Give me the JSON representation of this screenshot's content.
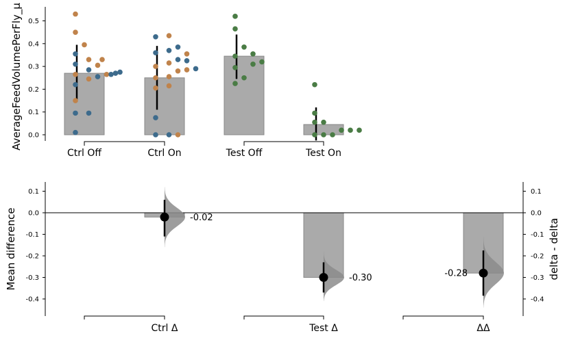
{
  "chart_data": [
    {
      "type": "bar",
      "panel": "top",
      "ylabel": "AverageFeedVolumePerFly_µ",
      "ylim": [
        -0.03,
        0.56
      ],
      "yticks": [
        "0.0",
        "0.1",
        "0.2",
        "0.3",
        "0.4",
        "0.5"
      ],
      "categories": [
        "Ctrl Off",
        "Ctrl On",
        "Test Off",
        "Test On"
      ],
      "bar_means": [
        0.27,
        0.25,
        0.345,
        0.045
      ],
      "error_bars": [
        [
          0.145,
          0.395
        ],
        [
          0.11,
          0.39
        ],
        [
          0.245,
          0.44
        ],
        [
          -0.025,
          0.12
        ]
      ],
      "bar_color": "#aaaaaa",
      "group_brackets": [
        [
          "Ctrl Off",
          "Ctrl On"
        ],
        [
          "Test Off",
          "Test On"
        ]
      ],
      "points": {
        "colors": {
          "a": "#3d6b8c",
          "b": "#c0834b",
          "c": "#4a7c45"
        },
        "Ctrl Off": [
          {
            "y": 0.53,
            "c": "b",
            "o": -2
          },
          {
            "y": 0.45,
            "c": "b",
            "o": -2
          },
          {
            "y": 0.395,
            "c": "b",
            "o": 0
          },
          {
            "y": 0.355,
            "c": "a",
            "o": -2
          },
          {
            "y": 0.33,
            "c": "b",
            "o": 1
          },
          {
            "y": 0.33,
            "c": "b",
            "o": 4
          },
          {
            "y": 0.31,
            "c": "a",
            "o": -2
          },
          {
            "y": 0.305,
            "c": "b",
            "o": 3
          },
          {
            "y": 0.285,
            "c": "a",
            "o": 1
          },
          {
            "y": 0.275,
            "c": "a",
            "o": 8
          },
          {
            "y": 0.27,
            "c": "a",
            "o": 7
          },
          {
            "y": 0.265,
            "c": "b",
            "o": -2
          },
          {
            "y": 0.265,
            "c": "b",
            "o": 5
          },
          {
            "y": 0.265,
            "c": "a",
            "o": 6
          },
          {
            "y": 0.255,
            "c": "a",
            "o": 3
          },
          {
            "y": 0.245,
            "c": "b",
            "o": 1
          },
          {
            "y": 0.22,
            "c": "a",
            "o": -2
          },
          {
            "y": 0.15,
            "c": "b",
            "o": -2
          },
          {
            "y": 0.095,
            "c": "a",
            "o": -2
          },
          {
            "y": 0.095,
            "c": "a",
            "o": 1
          },
          {
            "y": 0.01,
            "c": "a",
            "o": -2
          }
        ],
        "Ctrl On": [
          {
            "y": 0.435,
            "c": "b",
            "o": 1
          },
          {
            "y": 0.43,
            "c": "a",
            "o": -2
          },
          {
            "y": 0.385,
            "c": "a",
            "o": 3
          },
          {
            "y": 0.37,
            "c": "a",
            "o": 1
          },
          {
            "y": 0.36,
            "c": "a",
            "o": -2
          },
          {
            "y": 0.355,
            "c": "b",
            "o": 5
          },
          {
            "y": 0.33,
            "c": "a",
            "o": 3
          },
          {
            "y": 0.325,
            "c": "a",
            "o": 5
          },
          {
            "y": 0.315,
            "c": "b",
            "o": 1
          },
          {
            "y": 0.3,
            "c": "b",
            "o": -2
          },
          {
            "y": 0.29,
            "c": "a",
            "o": 7
          },
          {
            "y": 0.285,
            "c": "b",
            "o": 5
          },
          {
            "y": 0.28,
            "c": "b",
            "o": 3
          },
          {
            "y": 0.255,
            "c": "b",
            "o": 1
          },
          {
            "y": 0.25,
            "c": "b",
            "o": -2
          },
          {
            "y": 0.215,
            "c": "b",
            "o": 1
          },
          {
            "y": 0.205,
            "c": "b",
            "o": -2
          },
          {
            "y": 0.075,
            "c": "a",
            "o": -2
          },
          {
            "y": 0.0,
            "c": "a",
            "o": -2
          },
          {
            "y": 0.0,
            "c": "a",
            "o": 1
          },
          {
            "y": 0.0,
            "c": "b",
            "o": 3
          }
        ],
        "Test Off": [
          {
            "y": 0.52,
            "c": "c",
            "o": -2
          },
          {
            "y": 0.465,
            "c": "c",
            "o": -2
          },
          {
            "y": 0.385,
            "c": "c",
            "o": 0
          },
          {
            "y": 0.355,
            "c": "c",
            "o": 2
          },
          {
            "y": 0.345,
            "c": "c",
            "o": -2
          },
          {
            "y": 0.32,
            "c": "c",
            "o": 4
          },
          {
            "y": 0.31,
            "c": "c",
            "o": 2
          },
          {
            "y": 0.295,
            "c": "c",
            "o": -2
          },
          {
            "y": 0.25,
            "c": "c",
            "o": 0
          },
          {
            "y": 0.225,
            "c": "c",
            "o": -2
          }
        ],
        "Test On": [
          {
            "y": 0.22,
            "c": "c",
            "o": -2
          },
          {
            "y": 0.095,
            "c": "c",
            "o": -2
          },
          {
            "y": 0.055,
            "c": "c",
            "o": -2
          },
          {
            "y": 0.055,
            "c": "c",
            "o": 0
          },
          {
            "y": 0.02,
            "c": "c",
            "o": 4
          },
          {
            "y": 0.02,
            "c": "c",
            "o": 6
          },
          {
            "y": 0.02,
            "c": "c",
            "o": 8
          },
          {
            "y": 0.0,
            "c": "c",
            "o": -2
          },
          {
            "y": 0.0,
            "c": "c",
            "o": 0
          },
          {
            "y": 0.0,
            "c": "c",
            "o": 2
          }
        ]
      }
    },
    {
      "type": "bar",
      "panel": "bottom",
      "ylabel": "Mean difference",
      "ylabel_right": "delta - delta",
      "ylim": [
        -0.48,
        0.14
      ],
      "yticks": [
        "0.1",
        "0.0",
        "-0.1",
        "-0.2",
        "-0.3",
        "-0.4"
      ],
      "categories": [
        "Ctrl Δ",
        "Test Δ",
        "ΔΔ"
      ],
      "values": [
        -0.02,
        -0.3,
        -0.28
      ],
      "ci": [
        [
          -0.11,
          0.06
        ],
        [
          -0.37,
          -0.23
        ],
        [
          -0.385,
          -0.175
        ]
      ],
      "value_labels": [
        "-0.02",
        "-0.30",
        "-0.28"
      ],
      "distribution_spread": [
        [
          -0.16,
          0.12
        ],
        [
          -0.41,
          -0.18
        ],
        [
          -0.44,
          -0.11
        ]
      ],
      "bar_color": "#aaaaaa",
      "distribution_color": "#8c8c8c",
      "zero_line": true
    }
  ]
}
